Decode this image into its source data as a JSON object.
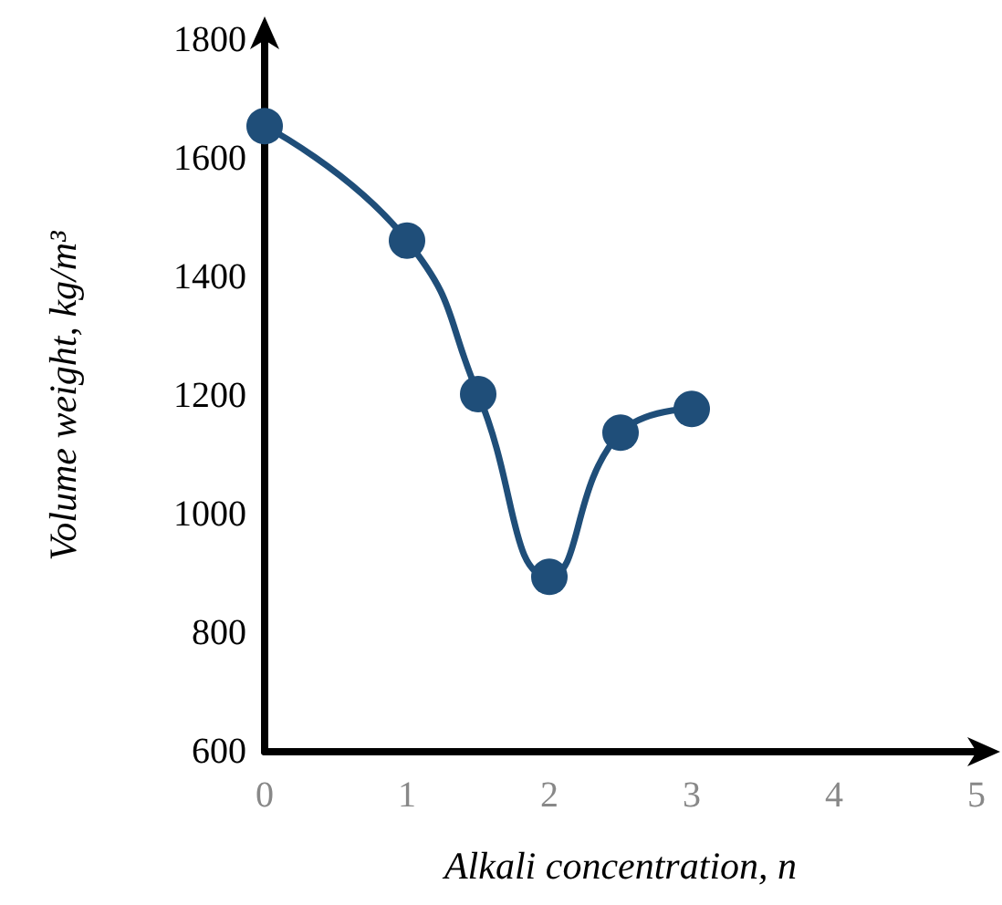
{
  "chart_data": {
    "type": "line",
    "xlabel": "Alkali concentration, n",
    "ylabel": "Volume weight, kg/m³",
    "x": [
      0,
      1,
      1.5,
      2,
      2.5,
      3
    ],
    "series": [
      {
        "color": "#1f4e79",
        "values": [
          1655,
          1462,
          1203,
          895,
          1138,
          1178
        ]
      }
    ],
    "xlim": [
      0,
      5
    ],
    "xticks": [
      0,
      1,
      2,
      3,
      4,
      5
    ],
    "ylim": [
      600,
      1800
    ],
    "yticks": [
      600,
      800,
      1000,
      1200,
      1400,
      1600,
      1800
    ],
    "grid": false,
    "marker": "circle",
    "line_style": "solid"
  }
}
